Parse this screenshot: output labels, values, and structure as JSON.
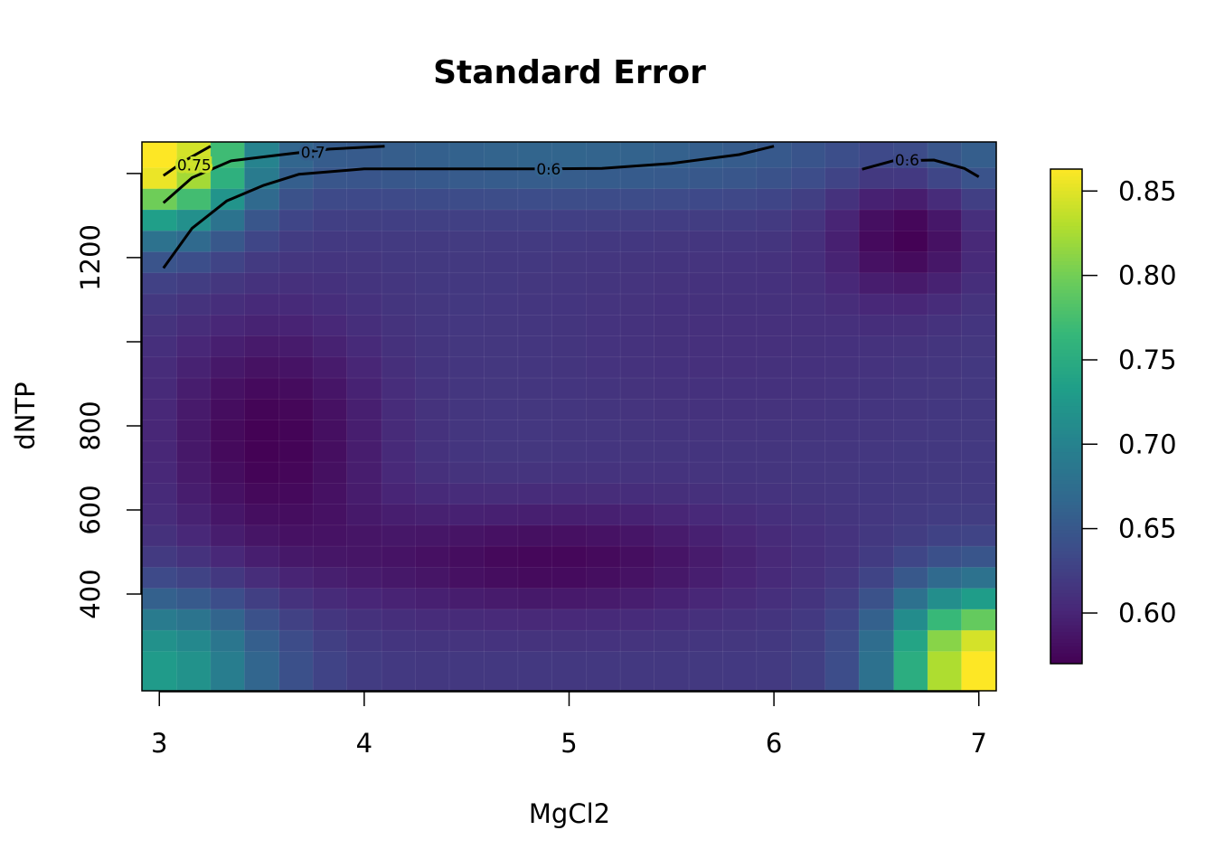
{
  "chart_data": {
    "type": "heatmap",
    "title": "Standard Error",
    "xlabel": "MgCl2",
    "ylabel": "dNTP",
    "xlim": [
      2.915,
      7.085
    ],
    "ylim": [
      170,
      1475
    ],
    "x_ticks": [
      3,
      4,
      5,
      6,
      7
    ],
    "y_ticks": [
      400,
      600,
      800,
      1000,
      1200,
      1400
    ],
    "y_tick_labels": [
      "400",
      "600",
      "800",
      "",
      "1200",
      ""
    ],
    "colorbar": {
      "min": 0.57,
      "max": 0.863,
      "ticks": [
        0.6,
        0.65,
        0.7,
        0.75,
        0.8,
        0.85
      ],
      "tick_labels": [
        "0.60",
        "0.65",
        "0.70",
        "0.75",
        "0.80",
        "0.85"
      ],
      "palette": [
        "#440154",
        "#482878",
        "#3E4A89",
        "#31688E",
        "#26828E",
        "#1F9E89",
        "#35B779",
        "#6DCD59",
        "#B4DE2C",
        "#FDE725"
      ]
    },
    "grid": {
      "x": [
        3.0,
        3.17,
        3.33,
        3.5,
        3.67,
        3.83,
        4.0,
        4.17,
        4.33,
        4.5,
        4.67,
        4.83,
        5.0,
        5.17,
        5.33,
        5.5,
        5.67,
        5.83,
        6.0,
        6.17,
        6.33,
        6.5,
        6.67,
        6.83,
        7.0
      ],
      "y": [
        240,
        290,
        340,
        390,
        440,
        490,
        540,
        590,
        640,
        690,
        740,
        790,
        840,
        890,
        940,
        990,
        1040,
        1090,
        1140,
        1190,
        1240,
        1290,
        1340,
        1390,
        1440
      ],
      "model": {
        "base": 0.62,
        "terms": [
          {
            "cx": 3.0,
            "cy": 1440,
            "amp": 0.245,
            "sx": 0.42,
            "sy": 170
          },
          {
            "cx": 7.0,
            "cy": 240,
            "amp": 0.245,
            "sx": 0.42,
            "sy": 170
          },
          {
            "cx": 3.0,
            "cy": 240,
            "amp": 0.11,
            "sx": 0.55,
            "sy": 160
          },
          {
            "cx": 7.0,
            "cy": 1440,
            "amp": 0.03,
            "sx": 0.4,
            "sy": 120
          },
          {
            "cx": 5.0,
            "cy": 1440,
            "amp": 0.045,
            "sx": 1.8,
            "sy": 110
          },
          {
            "cx": 3.55,
            "cy": 770,
            "amp": -0.05,
            "sx": 0.55,
            "sy": 300
          },
          {
            "cx": 4.9,
            "cy": 480,
            "amp": -0.045,
            "sx": 1.1,
            "sy": 140
          },
          {
            "cx": 6.65,
            "cy": 1270,
            "amp": -0.05,
            "sx": 0.35,
            "sy": 160
          },
          {
            "cx": 5.8,
            "cy": 1000,
            "amp": -0.01,
            "sx": 1.0,
            "sy": 300
          }
        ]
      }
    },
    "contours": [
      {
        "level": "0.6",
        "points": [
          [
            3.02,
            1175
          ],
          [
            3.16,
            1270
          ],
          [
            3.33,
            1335
          ],
          [
            3.51,
            1372
          ],
          [
            3.68,
            1398
          ],
          [
            4.0,
            1411
          ],
          [
            4.5,
            1411
          ],
          [
            4.83,
            1411
          ],
          [
            5.16,
            1412
          ],
          [
            5.5,
            1424
          ],
          [
            5.83,
            1445
          ],
          [
            6.0,
            1465
          ]
        ],
        "label_at": [
          4.9,
          1411
        ]
      },
      {
        "level": "0.6",
        "points": [
          [
            6.43,
            1410
          ],
          [
            6.58,
            1430
          ],
          [
            6.78,
            1432
          ],
          [
            6.93,
            1412
          ],
          [
            7.0,
            1392
          ]
        ],
        "label_at": [
          6.65,
          1432
        ]
      },
      {
        "level": "0.7",
        "points": [
          [
            3.02,
            1330
          ],
          [
            3.16,
            1390
          ],
          [
            3.35,
            1430
          ],
          [
            3.6,
            1445
          ],
          [
            3.83,
            1458
          ],
          [
            4.1,
            1465
          ]
        ],
        "label_at": [
          3.75,
          1450
        ]
      },
      {
        "level": "0.75",
        "points": [
          [
            3.02,
            1395
          ],
          [
            3.13,
            1432
          ],
          [
            3.25,
            1465
          ]
        ],
        "label_at": [
          3.17,
          1420
        ]
      }
    ]
  }
}
